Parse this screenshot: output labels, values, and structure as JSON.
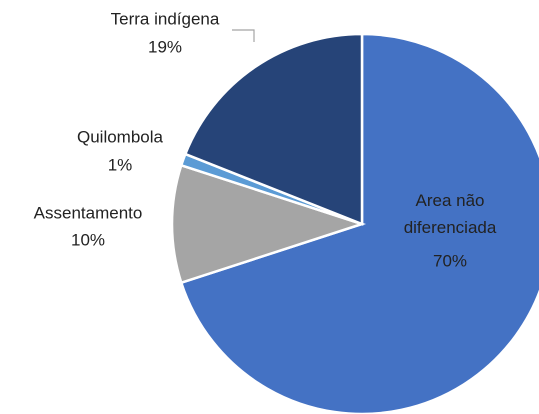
{
  "chart_data": {
    "type": "pie",
    "categories": [
      "Area não diferenciada",
      "Assentamento",
      "Quilombola",
      "Terra indígena"
    ],
    "values": [
      70,
      10,
      1,
      19
    ],
    "value_labels": [
      "70%",
      "10%",
      "1%",
      "19%"
    ],
    "colors": [
      "#4472c4",
      "#a5a5a5",
      "#5b9bd5",
      "#264478"
    ]
  }
}
